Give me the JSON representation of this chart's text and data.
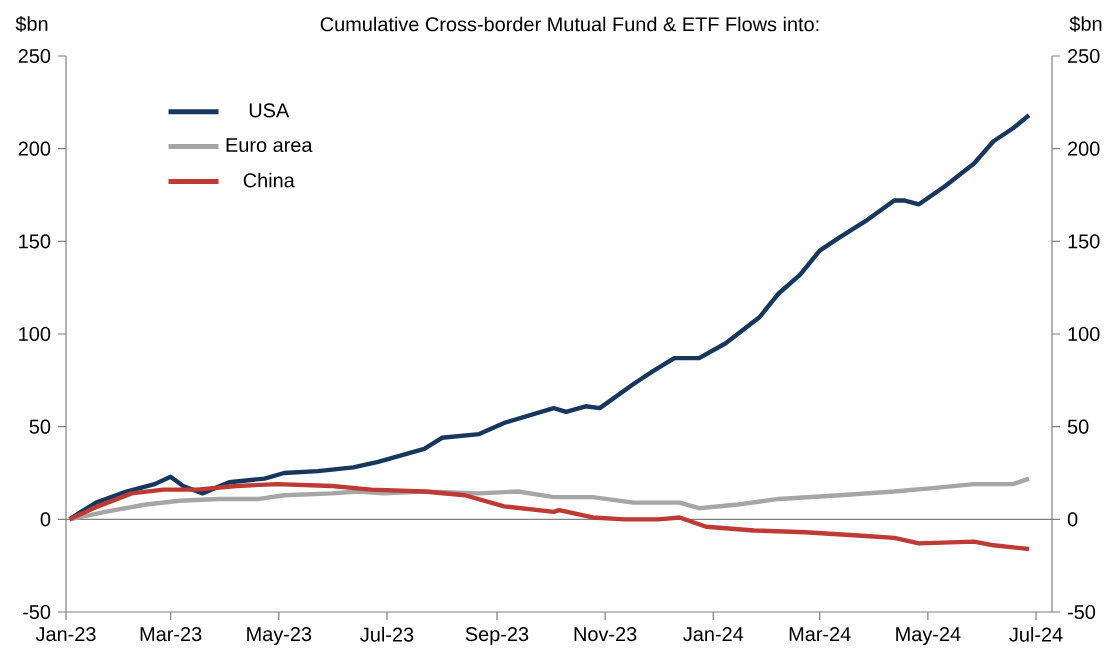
{
  "chart_data": {
    "type": "line",
    "title": "Cumulative Cross-border Mutual Fund & ETF Flows into:",
    "ylabel": "$bn",
    "y2label": "$bn",
    "xlim": [
      "2023-01-01",
      "2024-07-10"
    ],
    "xticks": [
      {
        "value": "2023-01-01",
        "label": "Jan-23"
      },
      {
        "value": "2023-03-01",
        "label": "Mar-23"
      },
      {
        "value": "2023-05-01",
        "label": "May-23"
      },
      {
        "value": "2023-07-01",
        "label": "Jul-23"
      },
      {
        "value": "2023-09-01",
        "label": "Sep-23"
      },
      {
        "value": "2023-11-01",
        "label": "Nov-23"
      },
      {
        "value": "2024-01-01",
        "label": "Jan-24"
      },
      {
        "value": "2024-03-01",
        "label": "Mar-24"
      },
      {
        "value": "2024-05-01",
        "label": "May-24"
      },
      {
        "value": "2024-07-01",
        "label": "Jul-24"
      }
    ],
    "ylim": [
      -50,
      250
    ],
    "yticks": [
      -50,
      0,
      50,
      100,
      150,
      200,
      250
    ],
    "y2lim": [
      -50,
      250
    ],
    "y2ticks": [
      -50,
      0,
      50,
      100,
      150,
      200,
      250
    ],
    "legend": "top left",
    "grid": false,
    "ref_lines": [
      {
        "axis": "y",
        "value": 0,
        "color": "#808080"
      }
    ],
    "series": [
      {
        "name": "USA",
        "color": "#17375e",
        "x": [
          "2023-01-03",
          "2023-01-11",
          "2023-01-18",
          "2023-02-04",
          "2023-02-20",
          "2023-03-01",
          "2023-03-08",
          "2023-03-19",
          "2023-04-03",
          "2023-04-23",
          "2023-05-04",
          "2023-05-23",
          "2023-06-12",
          "2023-06-26",
          "2023-07-22",
          "2023-08-01",
          "2023-08-22",
          "2023-09-05",
          "2023-10-03",
          "2023-10-10",
          "2023-10-21",
          "2023-10-29",
          "2023-11-17",
          "2023-11-28",
          "2023-12-10",
          "2023-12-24",
          "2024-01-08",
          "2024-01-27",
          "2024-02-07",
          "2024-02-19",
          "2024-03-01",
          "2024-03-12",
          "2024-03-27",
          "2024-04-12",
          "2024-04-18",
          "2024-04-26",
          "2024-05-11",
          "2024-05-27",
          "2024-06-07",
          "2024-06-18",
          "2024-06-27"
        ],
        "values": [
          0,
          5,
          9,
          15,
          19,
          23,
          18,
          14,
          20,
          22,
          25,
          26,
          28,
          31,
          38,
          44,
          46,
          52,
          60,
          58,
          61,
          60,
          73,
          80,
          87,
          87,
          95,
          109,
          122,
          132,
          145,
          152,
          161,
          172,
          172,
          170,
          180,
          192,
          204,
          211,
          218
        ]
      },
      {
        "name": "Euro area",
        "color": "#a6a6a6",
        "x": [
          "2023-01-03",
          "2023-01-23",
          "2023-02-15",
          "2023-03-06",
          "2023-03-28",
          "2023-04-20",
          "2023-05-04",
          "2023-05-31",
          "2023-06-15",
          "2023-06-29",
          "2023-07-22",
          "2023-08-22",
          "2023-09-13",
          "2023-10-03",
          "2023-10-06",
          "2023-10-25",
          "2023-11-17",
          "2023-12-13",
          "2023-12-24",
          "2024-01-15",
          "2024-02-07",
          "2024-03-12",
          "2024-04-12",
          "2024-05-05",
          "2024-05-27",
          "2024-06-18",
          "2024-06-27"
        ],
        "values": [
          0,
          4,
          8,
          10,
          11,
          11,
          13,
          14,
          15,
          14,
          15,
          14,
          15,
          12,
          12,
          12,
          9,
          9,
          6,
          8,
          11,
          13,
          15,
          17,
          19,
          19,
          22
        ]
      },
      {
        "name": "China",
        "color": "#be3a34",
        "x": [
          "2023-01-03",
          "2023-01-19",
          "2023-02-07",
          "2023-02-25",
          "2023-03-16",
          "2023-04-07",
          "2023-04-30",
          "2023-05-31",
          "2023-06-22",
          "2023-07-22",
          "2023-08-14",
          "2023-09-05",
          "2023-10-03",
          "2023-10-06",
          "2023-10-25",
          "2023-11-12",
          "2023-12-01",
          "2023-12-13",
          "2023-12-28",
          "2024-01-24",
          "2024-02-22",
          "2024-03-27",
          "2024-04-12",
          "2024-04-26",
          "2024-05-27",
          "2024-06-07",
          "2024-06-27"
        ],
        "values": [
          0,
          7,
          14,
          16,
          16,
          18,
          19,
          18,
          16,
          15,
          13,
          7,
          4,
          5,
          1,
          0,
          0,
          1,
          -4,
          -6,
          -7,
          -9,
          -10,
          -13,
          -12,
          -14,
          -16
        ]
      }
    ]
  }
}
